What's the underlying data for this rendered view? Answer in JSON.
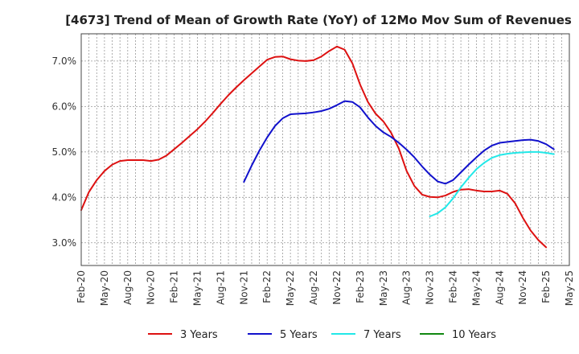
{
  "chart_data": {
    "type": "line",
    "title": "[4673]  Trend of Mean of Growth Rate (YoY) of 12Mo Mov Sum of Revenues",
    "xlabel": "",
    "ylabel": "",
    "x_start": "2020-02",
    "x_ticks": [
      "Feb-20",
      "May-20",
      "Aug-20",
      "Nov-20",
      "Feb-21",
      "May-21",
      "Aug-21",
      "Nov-21",
      "Feb-22",
      "May-22",
      "Aug-22",
      "Nov-22",
      "Feb-23",
      "May-23",
      "Aug-23",
      "Nov-23",
      "Feb-24",
      "May-24",
      "Aug-24",
      "Nov-24",
      "Feb-25",
      "May-25"
    ],
    "x_range_months": [
      0,
      63
    ],
    "y_ticks": [
      3.0,
      4.0,
      5.0,
      6.0,
      7.0
    ],
    "y_tick_labels": [
      "3.0%",
      "4.0%",
      "5.0%",
      "6.0%",
      "7.0%"
    ],
    "ylim": [
      2.5,
      7.6
    ],
    "grid": true,
    "legend_position": "bottom",
    "series": [
      {
        "name": "3 Years",
        "color": "#dd1111",
        "start_month": 0,
        "values": [
          3.72,
          4.12,
          4.38,
          4.58,
          4.72,
          4.8,
          4.82,
          4.82,
          4.82,
          4.8,
          4.83,
          4.92,
          5.06,
          5.2,
          5.35,
          5.5,
          5.67,
          5.86,
          6.06,
          6.25,
          6.42,
          6.58,
          6.73,
          6.88,
          7.03,
          7.09,
          7.1,
          7.04,
          7.01,
          7.0,
          7.02,
          7.1,
          7.22,
          7.32,
          7.25,
          6.95,
          6.48,
          6.1,
          5.84,
          5.67,
          5.42,
          5.07,
          4.58,
          4.25,
          4.06,
          4.01,
          4.0,
          4.04,
          4.12,
          4.17,
          4.18,
          4.15,
          4.13,
          4.13,
          4.15,
          4.08,
          3.87,
          3.55,
          3.27,
          3.06,
          2.9
        ]
      },
      {
        "name": "5 Years",
        "color": "#1111cc",
        "start_month": 21,
        "values": [
          4.34,
          4.7,
          5.03,
          5.32,
          5.57,
          5.74,
          5.83,
          5.84,
          5.85,
          5.87,
          5.9,
          5.95,
          6.03,
          6.12,
          6.1,
          5.98,
          5.76,
          5.57,
          5.43,
          5.33,
          5.2,
          5.05,
          4.88,
          4.68,
          4.5,
          4.35,
          4.3,
          4.38,
          4.55,
          4.72,
          4.88,
          5.03,
          5.14,
          5.2,
          5.22,
          5.24,
          5.26,
          5.27,
          5.24,
          5.17,
          5.06
        ]
      },
      {
        "name": "7 Years",
        "color": "#22e8e8",
        "start_month": 45,
        "values": [
          3.58,
          3.65,
          3.78,
          3.98,
          4.22,
          4.43,
          4.62,
          4.76,
          4.87,
          4.93,
          4.96,
          4.98,
          4.99,
          5.0,
          5.0,
          4.98,
          4.95
        ]
      },
      {
        "name": "10 Years",
        "color": "#118811",
        "start_month": 0,
        "values": []
      }
    ]
  }
}
